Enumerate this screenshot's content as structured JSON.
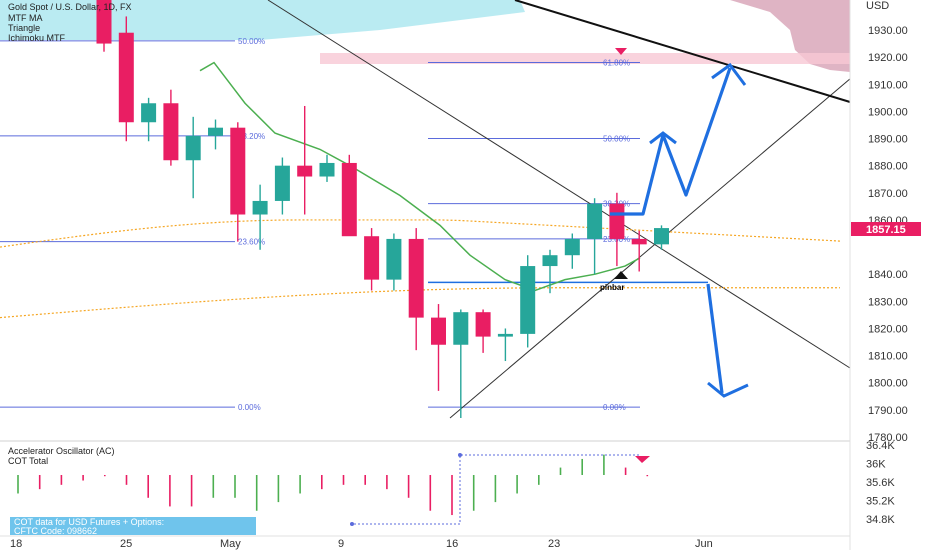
{
  "header": {
    "symbol": "Gold Spot / U.S. Dollar, 1D, FX",
    "indicators": [
      "MTF MA",
      "Triangle",
      "Ichimoku MTF"
    ]
  },
  "oscillator": {
    "title": "Accelerator Oscillator (AC)",
    "subtitle": "COT Total",
    "cot_line1": "COT data for USD Futures + Options:",
    "cot_line2": "CFTC Code: 098662"
  },
  "price_axis": {
    "unit": "USD",
    "ticks": [
      "1930.00",
      "1920.00",
      "1910.00",
      "1900.00",
      "1890.00",
      "1880.00",
      "1870.00",
      "1860.00",
      "1840.00",
      "1830.00",
      "1820.00",
      "1810.00",
      "1800.00",
      "1790.00",
      "1780.00"
    ],
    "current_price": "1857.15"
  },
  "osc_axis": {
    "ticks": [
      "36.4K",
      "36K",
      "35.6K",
      "35.2K",
      "34.8K"
    ]
  },
  "date_axis": {
    "ticks": [
      "18",
      "25",
      "May",
      "9",
      "16",
      "23",
      "Jun"
    ]
  },
  "annotations": {
    "pinbar": "pinbar"
  },
  "colors": {
    "bull": "#26a69a",
    "bear": "#e91e63",
    "fib": "#5b6bdc",
    "ichimoku_cloud": "#aee8f0",
    "bear_cloud": "#d49bb0",
    "projection": "#1f6fe0",
    "ma_green": "#4caf50",
    "ma_orange": "#f5a623"
  },
  "chart_data": {
    "type": "candlestick",
    "title": "Gold Spot / U.S. Dollar, 1D, FX",
    "ylim": [
      1780,
      1935
    ],
    "candles": [
      {
        "o": 1950,
        "h": 1955,
        "l": 1922,
        "c": 1925
      },
      {
        "o": 1929,
        "h": 1935,
        "l": 1889,
        "c": 1896
      },
      {
        "o": 1896,
        "h": 1905,
        "l": 1889,
        "c": 1903
      },
      {
        "o": 1903,
        "h": 1908,
        "l": 1880,
        "c": 1882
      },
      {
        "o": 1882,
        "h": 1898,
        "l": 1868,
        "c": 1891
      },
      {
        "o": 1891,
        "h": 1897,
        "l": 1886,
        "c": 1894
      },
      {
        "o": 1894,
        "h": 1896,
        "l": 1852,
        "c": 1862
      },
      {
        "o": 1862,
        "h": 1873,
        "l": 1849,
        "c": 1867
      },
      {
        "o": 1867,
        "h": 1883,
        "l": 1862,
        "c": 1880
      },
      {
        "o": 1880,
        "h": 1902,
        "l": 1862,
        "c": 1876
      },
      {
        "o": 1876,
        "h": 1884,
        "l": 1874,
        "c": 1881
      },
      {
        "o": 1881,
        "h": 1884,
        "l": 1855,
        "c": 1854
      },
      {
        "o": 1854,
        "h": 1857,
        "l": 1834,
        "c": 1838
      },
      {
        "o": 1838,
        "h": 1855,
        "l": 1834,
        "c": 1853
      },
      {
        "o": 1853,
        "h": 1857,
        "l": 1812,
        "c": 1824
      },
      {
        "o": 1824,
        "h": 1829,
        "l": 1797,
        "c": 1814
      },
      {
        "o": 1814,
        "h": 1827,
        "l": 1787,
        "c": 1826
      },
      {
        "o": 1826,
        "h": 1827,
        "l": 1811,
        "c": 1817
      },
      {
        "o": 1817,
        "h": 1820,
        "l": 1808,
        "c": 1818
      },
      {
        "o": 1818,
        "h": 1847,
        "l": 1813,
        "c": 1843
      },
      {
        "o": 1843,
        "h": 1849,
        "l": 1833,
        "c": 1847
      },
      {
        "o": 1847,
        "h": 1855,
        "l": 1842,
        "c": 1853
      },
      {
        "o": 1853,
        "h": 1868,
        "l": 1840,
        "c": 1866
      },
      {
        "o": 1866,
        "h": 1870,
        "l": 1843,
        "c": 1853
      },
      {
        "o": 1853,
        "h": 1856,
        "l": 1841,
        "c": 1851
      },
      {
        "o": 1851,
        "h": 1858,
        "l": 1849,
        "c": 1857
      }
    ],
    "fib_levels": [
      {
        "label": "61.80%",
        "price": 1918
      },
      {
        "label": "50.00%",
        "price": 1890
      },
      {
        "label": "38.20%",
        "price": 1866
      },
      {
        "label": "23.60%",
        "price": 1853
      },
      {
        "label": "0.00%",
        "price": 1791
      }
    ],
    "fib_levels_left": [
      {
        "label": "50.00%",
        "price": 1926
      },
      {
        "label": "38.20%",
        "price": 1891
      },
      {
        "label": "23.60%",
        "price": 1852
      },
      {
        "label": "0.00%",
        "price": 1791
      }
    ],
    "oscillator_ylim": [
      34.6,
      36.5
    ],
    "oscillator_bars": [
      {
        "v": 35.4,
        "d": "up"
      },
      {
        "v": 35.5,
        "d": "down"
      },
      {
        "v": 35.6,
        "d": "down"
      },
      {
        "v": 35.7,
        "d": "down"
      },
      {
        "v": 35.8,
        "d": "down"
      },
      {
        "v": 35.6,
        "d": "down"
      },
      {
        "v": 35.3,
        "d": "down"
      },
      {
        "v": 35.1,
        "d": "down"
      },
      {
        "v": 35.1,
        "d": "down"
      },
      {
        "v": 35.3,
        "d": "up"
      },
      {
        "v": 35.3,
        "d": "up"
      },
      {
        "v": 35.0,
        "d": "up"
      },
      {
        "v": 35.2,
        "d": "up"
      },
      {
        "v": 35.4,
        "d": "up"
      },
      {
        "v": 35.5,
        "d": "down"
      },
      {
        "v": 35.6,
        "d": "down"
      },
      {
        "v": 35.6,
        "d": "down"
      },
      {
        "v": 35.5,
        "d": "down"
      },
      {
        "v": 35.3,
        "d": "down"
      },
      {
        "v": 35.0,
        "d": "down"
      },
      {
        "v": 34.9,
        "d": "down"
      },
      {
        "v": 35.0,
        "d": "up"
      },
      {
        "v": 35.2,
        "d": "up"
      },
      {
        "v": 35.4,
        "d": "up"
      },
      {
        "v": 35.6,
        "d": "up"
      },
      {
        "v": 36.0,
        "d": "up"
      },
      {
        "v": 36.2,
        "d": "up"
      },
      {
        "v": 36.3,
        "d": "up"
      },
      {
        "v": 36.0,
        "d": "down"
      },
      {
        "v": 35.8,
        "d": "down"
      }
    ]
  }
}
